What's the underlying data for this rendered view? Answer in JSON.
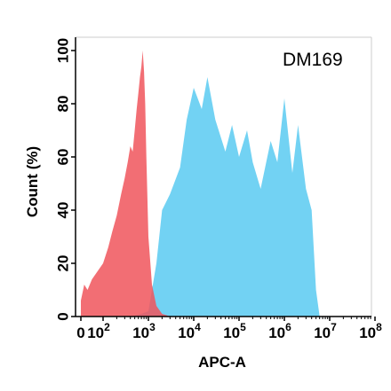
{
  "chart_data": {
    "type": "area",
    "title": "",
    "annotation": "DM169",
    "xlabel": "APC-A",
    "ylabel": "Count  (%)",
    "xscale": "biexponential",
    "xlim": [
      -10,
      100000000
    ],
    "ylim": [
      0,
      105
    ],
    "x_ticks": [
      {
        "label": "0",
        "value": 0
      },
      {
        "label": "10",
        "sup": "2",
        "value": 100
      },
      {
        "label": "10",
        "sup": "3",
        "value": 1000
      },
      {
        "label": "10",
        "sup": "4",
        "value": 10000
      },
      {
        "label": "10",
        "sup": "5",
        "value": 100000
      },
      {
        "label": "10",
        "sup": "6",
        "value": 1000000
      },
      {
        "label": "10",
        "sup": "7",
        "value": 10000000
      },
      {
        "label": "10",
        "sup": "8",
        "value": 100000000
      }
    ],
    "y_ticks": [
      0,
      20,
      40,
      60,
      80,
      100
    ],
    "grid": false,
    "series": [
      {
        "color": "#f0555c",
        "x": [
          0,
          15,
          30,
          50,
          100,
          130,
          160,
          200,
          250,
          300,
          350,
          400,
          450,
          500,
          550,
          600,
          650,
          700,
          750,
          800,
          850,
          900,
          1000,
          1200,
          1500,
          2000,
          2500,
          3000
        ],
        "y": [
          6,
          12,
          10,
          14,
          20,
          26,
          32,
          38,
          46,
          52,
          58,
          64,
          62,
          70,
          78,
          84,
          90,
          94,
          100,
          92,
          80,
          60,
          30,
          12,
          4,
          1,
          0.5,
          0
        ]
      },
      {
        "color": "#6ad0f2",
        "x": [
          400,
          700,
          1000,
          1500,
          2000,
          3000,
          5000,
          7000,
          10000,
          15000,
          20000,
          30000,
          50000,
          70000,
          100000,
          150000,
          200000,
          300000,
          500000,
          700000,
          1000000,
          1500000,
          2000000,
          3000000,
          4000000,
          5000000,
          6000000
        ],
        "y": [
          0,
          1,
          2,
          20,
          40,
          46,
          56,
          74,
          86,
          78,
          90,
          74,
          62,
          72,
          60,
          70,
          58,
          48,
          66,
          58,
          82,
          54,
          72,
          48,
          40,
          10,
          0
        ]
      }
    ]
  }
}
